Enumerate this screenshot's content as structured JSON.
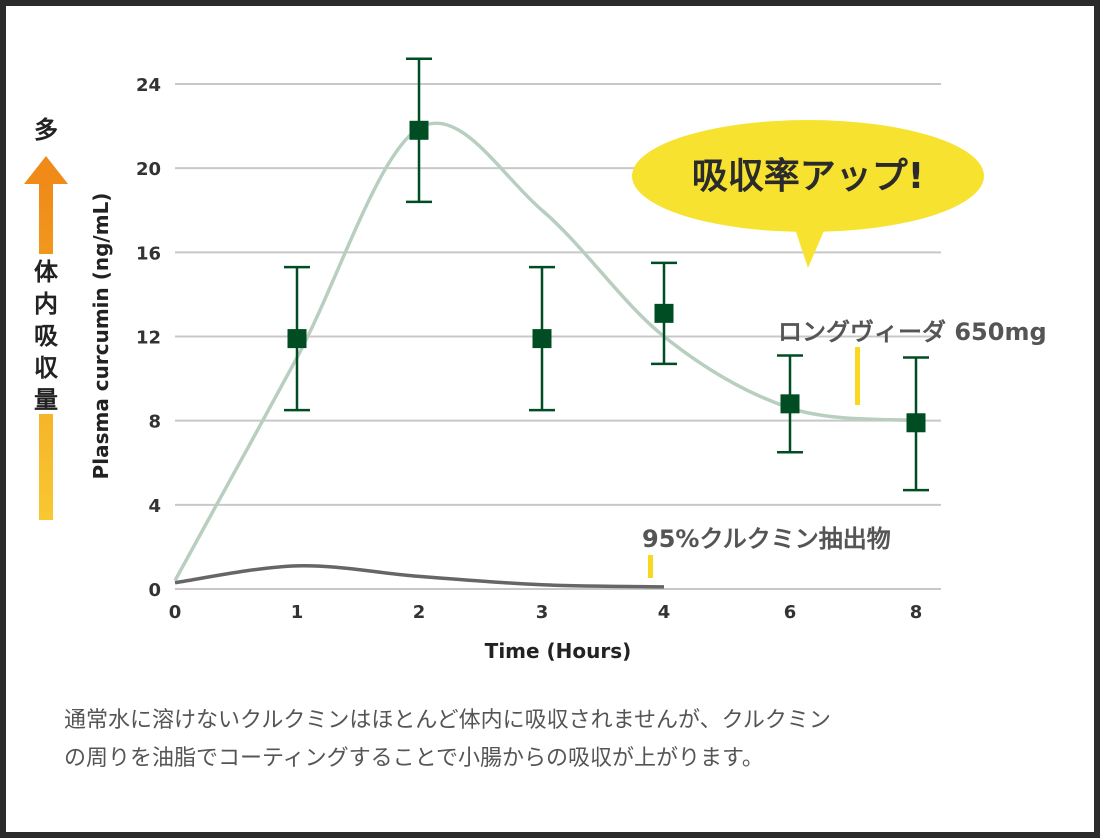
{
  "chart_data": {
    "type": "line",
    "xlabel": "Time (Hours)",
    "ylabel": "Plasma curcumin (ng/mL)",
    "categories": [
      "0",
      "1",
      "2",
      "3",
      "4",
      "6",
      "8"
    ],
    "ylim": [
      0,
      24
    ],
    "yticks": [
      "0",
      "4",
      "8",
      "12",
      "16",
      "20",
      "24"
    ],
    "grid": true,
    "series": [
      {
        "name": "ロングヴィーダ 650mg",
        "color": "#004d23",
        "fit_color": "#b8cfc0",
        "x": [
          "1",
          "2",
          "3",
          "4",
          "6",
          "8"
        ],
        "values": [
          11.9,
          21.8,
          11.9,
          13.1,
          8.8,
          7.9
        ],
        "error_low": [
          8.5,
          18.4,
          8.5,
          10.7,
          6.5,
          4.7
        ],
        "error_high": [
          15.3,
          25.2,
          15.3,
          15.5,
          11.1,
          11.0
        ],
        "fit": [
          {
            "x": "0",
            "y": 0.4
          },
          {
            "x": "1",
            "y": 11.0
          },
          {
            "x": "2",
            "y": 21.9
          },
          {
            "x": "3",
            "y": 18.0
          },
          {
            "x": "4",
            "y": 12.0
          },
          {
            "x": "6",
            "y": 8.6
          },
          {
            "x": "8",
            "y": 8.0
          }
        ]
      },
      {
        "name": "95%クルクミン抽出物",
        "color": "#666666",
        "x": [
          "0",
          "1",
          "2",
          "3",
          "4"
        ],
        "values": [
          0.3,
          1.1,
          0.6,
          0.2,
          0.1
        ]
      }
    ],
    "side_label": "体内吸収量",
    "side_top_label": "多",
    "callout": "吸収率アップ!"
  },
  "caption": [
    "通常水に溶けないクルクミンはほとんど体内に吸収されませんが、クルクミン",
    "の周りを油脂でコーティングすることで小腸からの吸収が上がります。"
  ],
  "colors": {
    "grid": "#c8c8c8",
    "arrow_top": "#f08a18",
    "arrow_bottom": "#f8c832",
    "bubble": "#f8e230",
    "series_marker": "#f8d820"
  }
}
